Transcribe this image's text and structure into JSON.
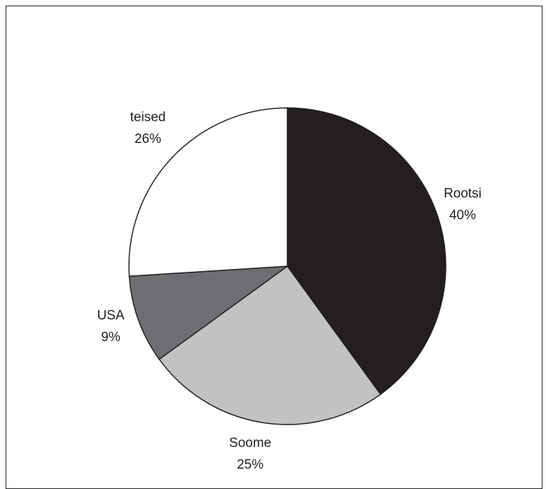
{
  "chart_data": {
    "type": "pie",
    "slices": [
      {
        "label": "Rootsi",
        "value": 40,
        "percent_label": "40%",
        "color": "#231f20"
      },
      {
        "label": "Soome",
        "value": 25,
        "percent_label": "25%",
        "color": "#c1c2c4"
      },
      {
        "label": "USA",
        "value": 9,
        "percent_label": "9%",
        "color": "#6d6e71"
      },
      {
        "label": "teised",
        "value": 26,
        "percent_label": "26%",
        "color": "#ffffff"
      }
    ],
    "start_angle_deg": 0,
    "direction": "clockwise"
  }
}
